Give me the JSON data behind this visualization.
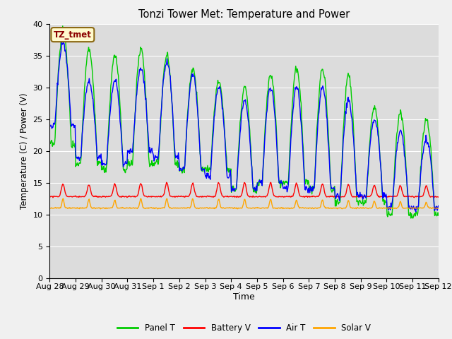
{
  "title": "Tonzi Tower Met: Temperature and Power",
  "xlabel": "Time",
  "ylabel": "Temperature (C) / Power (V)",
  "ylim": [
    0,
    40
  ],
  "yticks": [
    0,
    5,
    10,
    15,
    20,
    25,
    30,
    35,
    40
  ],
  "annotation_text": "TZ_tmet",
  "annotation_color": "#8B0000",
  "annotation_bg": "#FFFACD",
  "plot_bg": "#DCDCDC",
  "fig_bg": "#F0F0F0",
  "line_colors": {
    "panel_t": "#00CC00",
    "battery_v": "#FF0000",
    "air_t": "#0000FF",
    "solar_v": "#FFA500"
  },
  "legend_labels": [
    "Panel T",
    "Battery V",
    "Air T",
    "Solar V"
  ],
  "x_tick_labels": [
    "Aug 28",
    "Aug 29",
    "Aug 30",
    "Aug 31",
    "Sep 1",
    "Sep 2",
    "Sep 3",
    "Sep 4",
    "Sep 5",
    "Sep 6",
    "Sep 7",
    "Sep 8",
    "Sep 9",
    "Sep 10",
    "Sep 11",
    "Sep 12"
  ],
  "num_days": 15,
  "points_per_day": 48
}
